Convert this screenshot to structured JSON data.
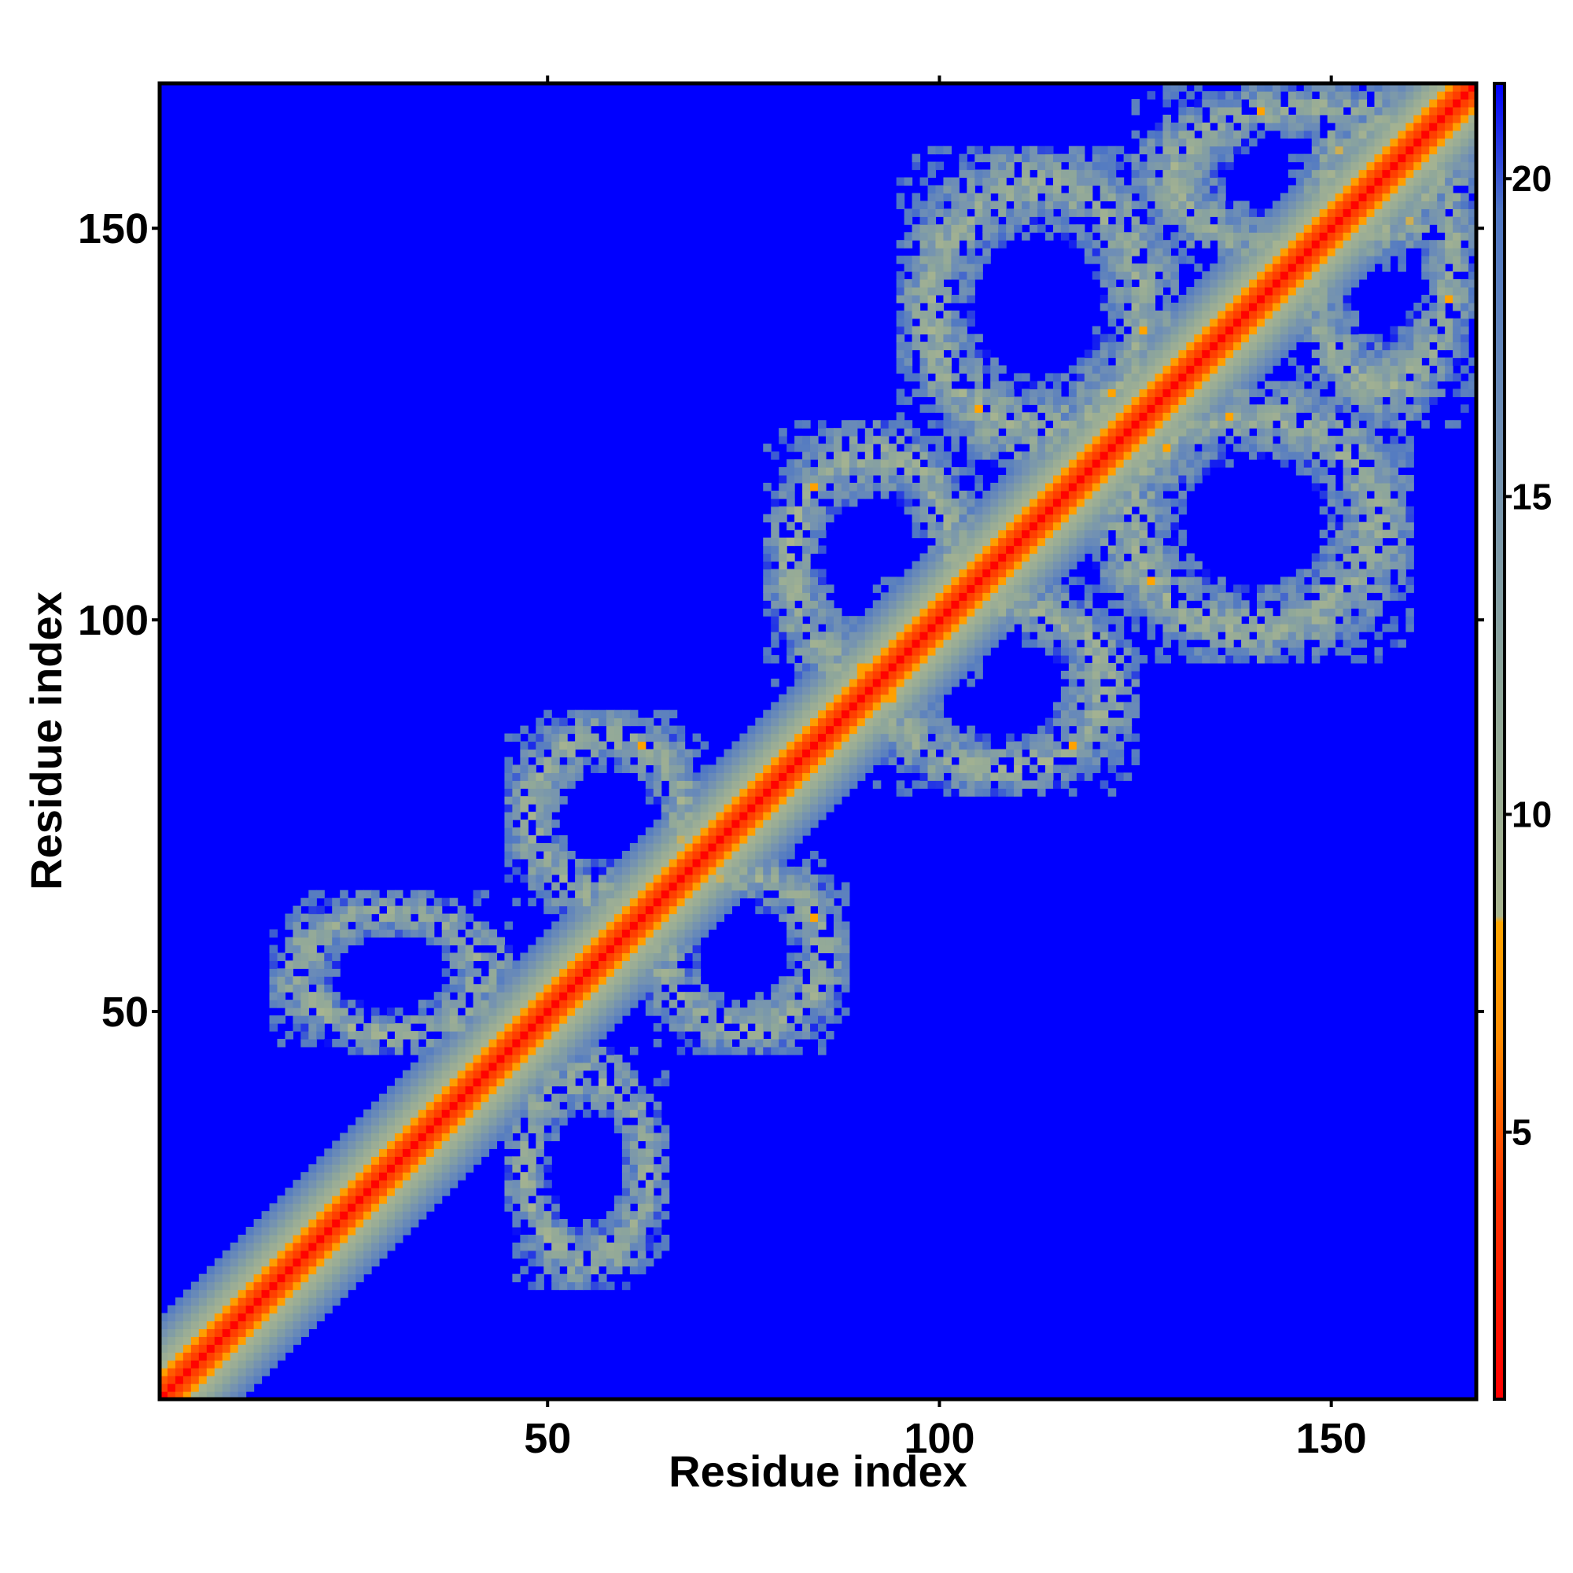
{
  "chart_data": {
    "type": "heatmap",
    "title": "",
    "xlabel": "Residue index",
    "ylabel": "Residue index",
    "n_residues": 168,
    "xlim": [
      1,
      168
    ],
    "ylim": [
      1,
      168
    ],
    "x_ticks": [
      50,
      100,
      150
    ],
    "y_ticks": [
      50,
      100,
      150
    ],
    "colorbar": {
      "ticks": [
        5,
        10,
        15,
        20
      ],
      "range": [
        0.8,
        21.5
      ],
      "position": "right",
      "stops": [
        {
          "value": 0.8,
          "color": "#ff0000"
        },
        {
          "value": 4.0,
          "color": "#ff3300"
        },
        {
          "value": 6.5,
          "color": "#ff8c00"
        },
        {
          "value": 8.3,
          "color": "#ffa500"
        },
        {
          "value": 8.4,
          "color": "#a9b58f"
        },
        {
          "value": 12.0,
          "color": "#8fa79a"
        },
        {
          "value": 16.0,
          "color": "#6f8fb5"
        },
        {
          "value": 19.5,
          "color": "#4f77c4"
        },
        {
          "value": 21.5,
          "color": "#0000ff"
        }
      ]
    },
    "background_value": 21.5,
    "description_of_values": "Pairwise distance map: values near 1 on the diagonal, rising with |i-j|; dense off-diagonal contact regions between residues ~45-168 forming ring-like blocks",
    "contact_blocks": [
      {
        "i": [
          45,
          70
        ],
        "j": [
          62,
          88
        ]
      },
      {
        "i": [
          62,
          88
        ],
        "j": [
          45,
          70
        ]
      },
      {
        "i": [
          78,
          105
        ],
        "j": [
          90,
          125
        ]
      },
      {
        "i": [
          90,
          125
        ],
        "j": [
          78,
          105
        ]
      },
      {
        "i": [
          95,
          130
        ],
        "j": [
          120,
          160
        ]
      },
      {
        "i": [
          120,
          160
        ],
        "j": [
          95,
          130
        ]
      },
      {
        "i": [
          125,
          168
        ],
        "j": [
          145,
          168
        ]
      },
      {
        "i": [
          145,
          168
        ],
        "j": [
          125,
          168
        ]
      },
      {
        "i": [
          15,
          45
        ],
        "j": [
          45,
          65
        ]
      },
      {
        "i": [
          45,
          65
        ],
        "j": [
          15,
          45
        ]
      }
    ]
  }
}
